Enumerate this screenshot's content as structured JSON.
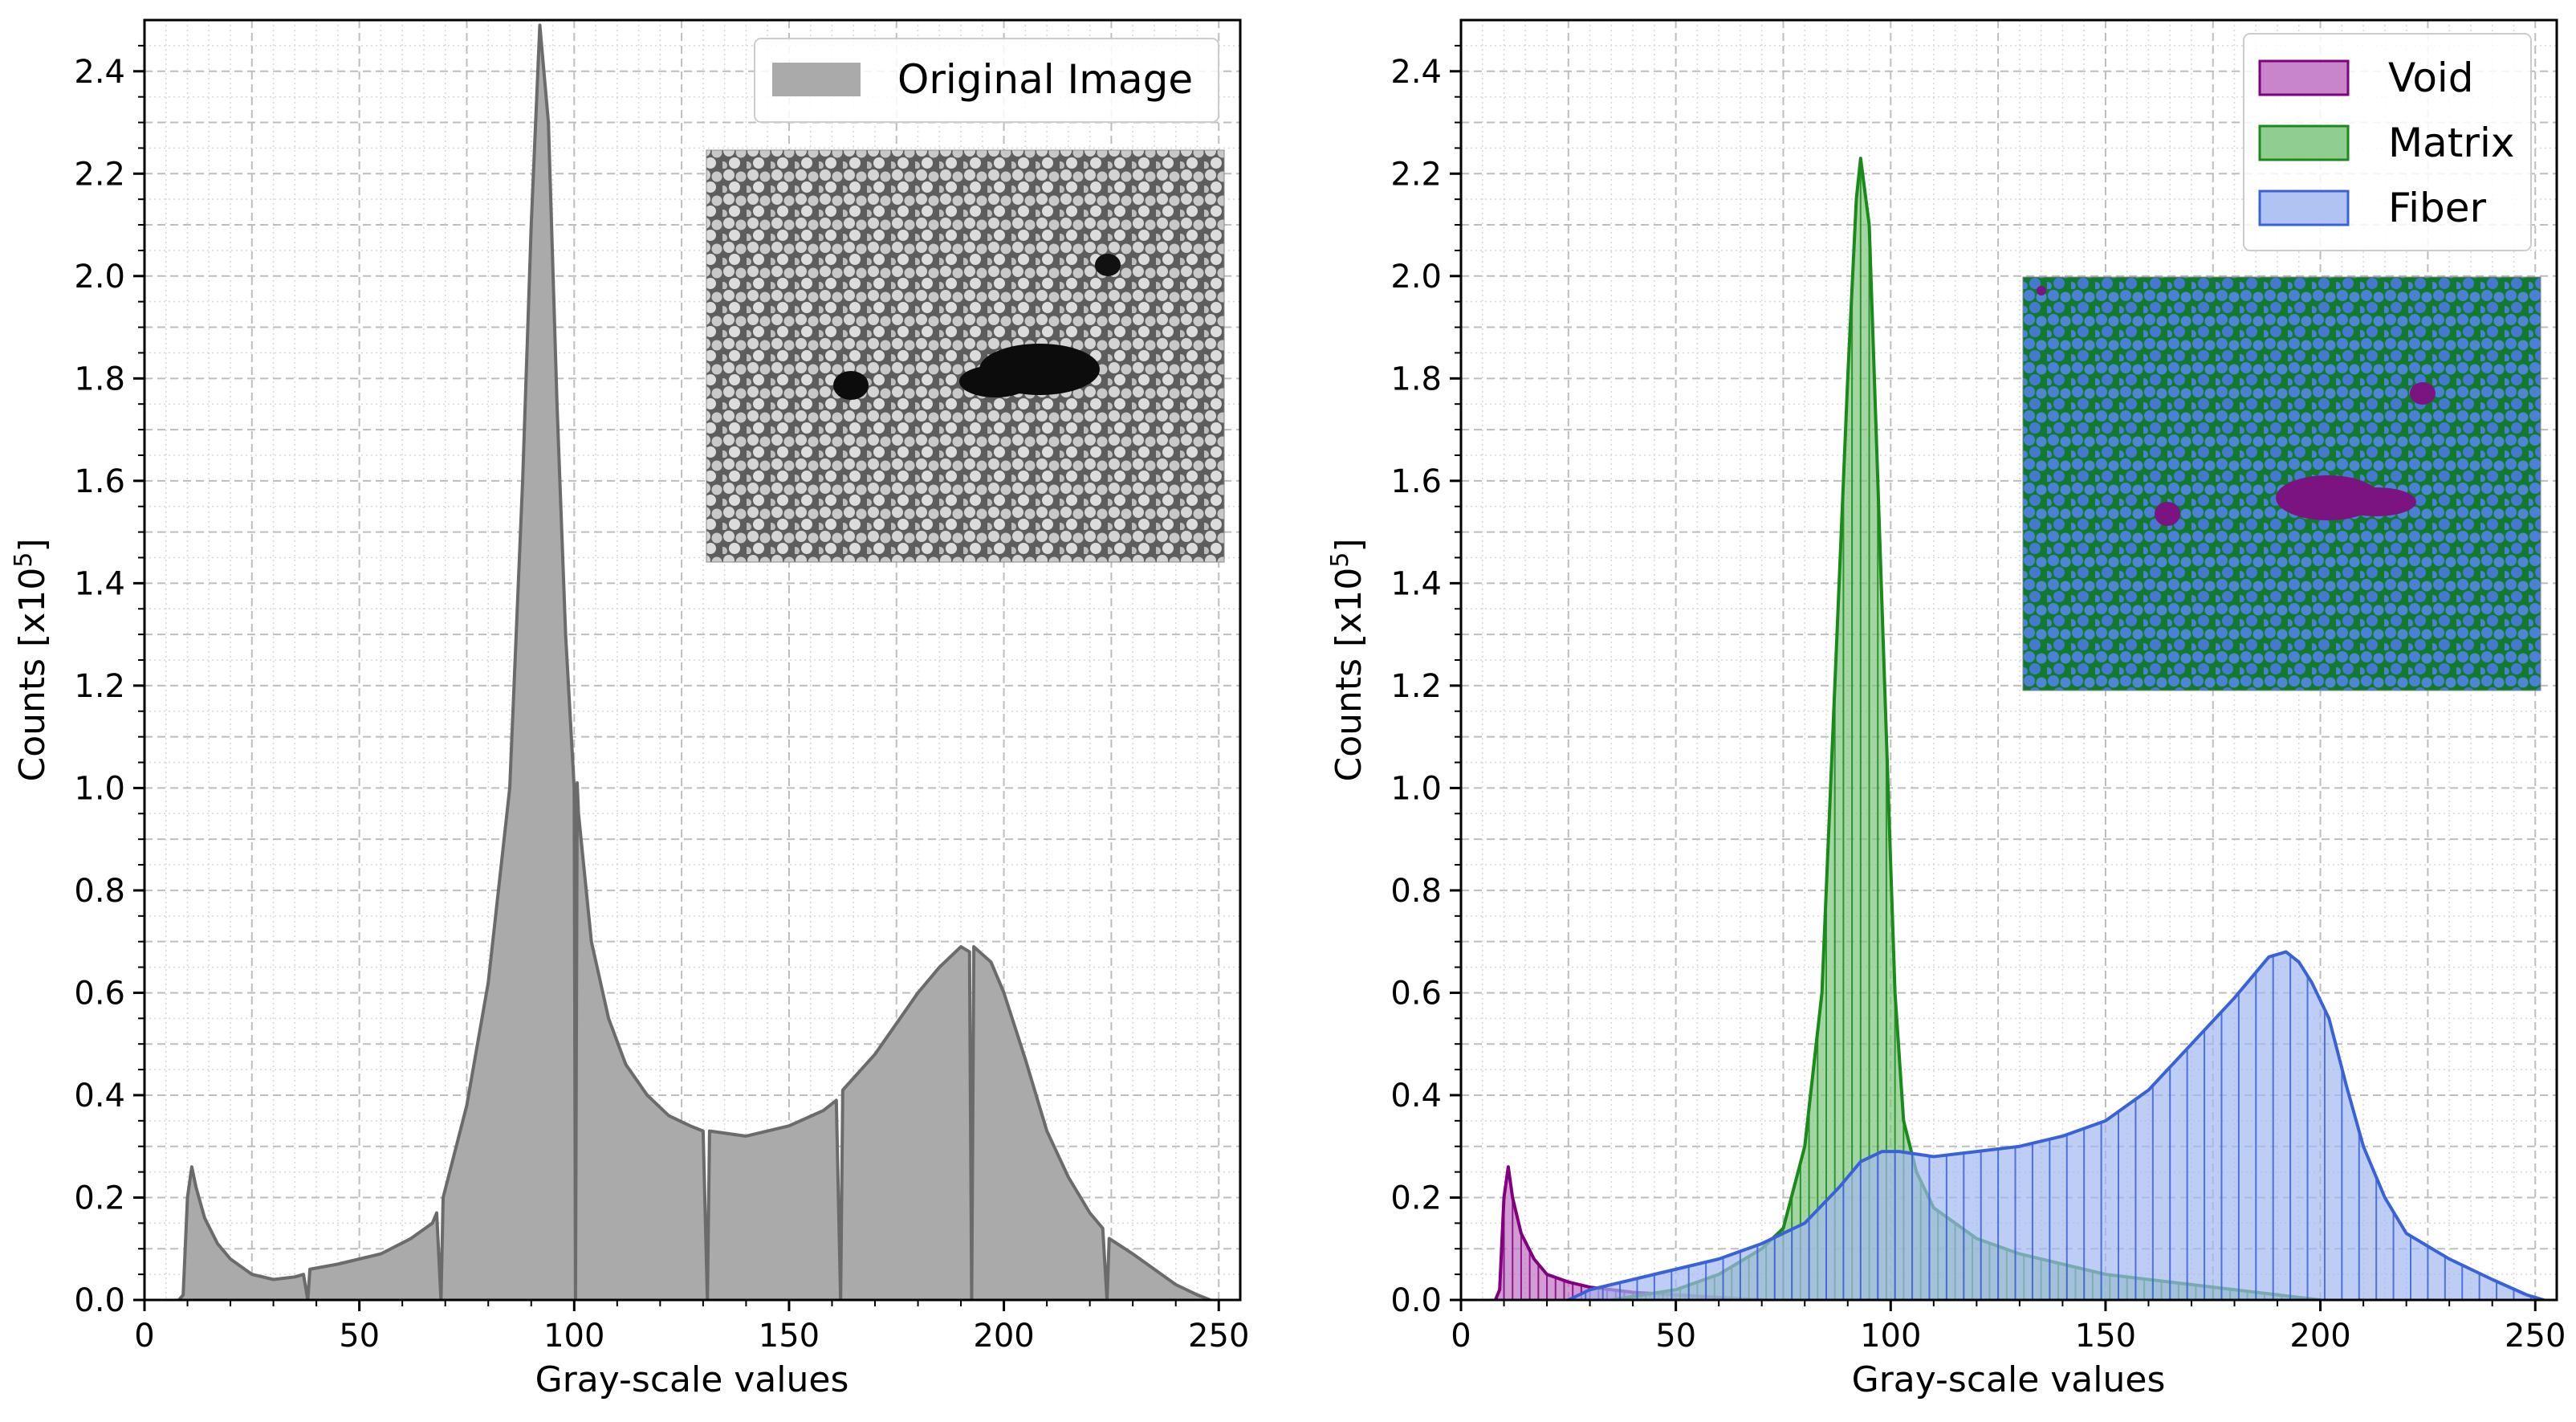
{
  "chart_data": [
    {
      "type": "area",
      "panel": "left",
      "title": "",
      "xlabel": "Gray-scale values",
      "ylabel_main": "Counts [x10",
      "ylabel_exp": "5",
      "ylabel_close": "]",
      "xlim": [
        0,
        255
      ],
      "ylim": [
        0,
        2.5
      ],
      "xticks": [
        0,
        50,
        100,
        150,
        200,
        250
      ],
      "yticks": [
        0.0,
        0.2,
        0.4,
        0.6,
        0.8,
        1.0,
        1.2,
        1.4,
        1.6,
        1.8,
        2.0,
        2.2,
        2.4
      ],
      "grid": true,
      "legend_position": "top-right",
      "inset": "grayscale micrograph of fiber cross-sections with dark voids",
      "series": [
        {
          "name": "Original Image",
          "color": "#aaaaaa",
          "line_color": "#6b6b6b",
          "points": [
            [
              8,
              0.0
            ],
            [
              9,
              0.01
            ],
            [
              10,
              0.2
            ],
            [
              11,
              0.26
            ],
            [
              12,
              0.22
            ],
            [
              14,
              0.16
            ],
            [
              17,
              0.11
            ],
            [
              20,
              0.08
            ],
            [
              25,
              0.05
            ],
            [
              30,
              0.04
            ],
            [
              35,
              0.045
            ],
            [
              37,
              0.05
            ],
            [
              38,
              0.0
            ],
            [
              38.5,
              0.06
            ],
            [
              45,
              0.07
            ],
            [
              55,
              0.09
            ],
            [
              62,
              0.12
            ],
            [
              67,
              0.15
            ],
            [
              68,
              0.17
            ],
            [
              69,
              0.0
            ],
            [
              69.5,
              0.2
            ],
            [
              75,
              0.38
            ],
            [
              80,
              0.62
            ],
            [
              85,
              1.0
            ],
            [
              88,
              1.6
            ],
            [
              90,
              2.1
            ],
            [
              92,
              2.49
            ],
            [
              94,
              2.3
            ],
            [
              96,
              1.75
            ],
            [
              98,
              1.3
            ],
            [
              99,
              1.15
            ],
            [
              100,
              1.0
            ],
            [
              100.3,
              0.0
            ],
            [
              100.7,
              1.01
            ],
            [
              101,
              0.95
            ],
            [
              104,
              0.7
            ],
            [
              108,
              0.55
            ],
            [
              112,
              0.46
            ],
            [
              117,
              0.4
            ],
            [
              122,
              0.36
            ],
            [
              127,
              0.34
            ],
            [
              130,
              0.33
            ],
            [
              131,
              0.0
            ],
            [
              131.5,
              0.33
            ],
            [
              140,
              0.32
            ],
            [
              150,
              0.34
            ],
            [
              158,
              0.37
            ],
            [
              161,
              0.39
            ],
            [
              162,
              0.0
            ],
            [
              162.5,
              0.41
            ],
            [
              170,
              0.48
            ],
            [
              175,
              0.54
            ],
            [
              180,
              0.6
            ],
            [
              185,
              0.65
            ],
            [
              190,
              0.69
            ],
            [
              192,
              0.68
            ],
            [
              192.5,
              0.0
            ],
            [
              193,
              0.69
            ],
            [
              197,
              0.66
            ],
            [
              200,
              0.6
            ],
            [
              205,
              0.47
            ],
            [
              210,
              0.33
            ],
            [
              215,
              0.24
            ],
            [
              220,
              0.17
            ],
            [
              223,
              0.14
            ],
            [
              224,
              0.0
            ],
            [
              224.5,
              0.12
            ],
            [
              230,
              0.09
            ],
            [
              235,
              0.06
            ],
            [
              240,
              0.03
            ],
            [
              245,
              0.01
            ],
            [
              248,
              0.0
            ]
          ]
        }
      ]
    },
    {
      "type": "area",
      "panel": "right",
      "title": "",
      "xlabel": "Gray-scale values",
      "ylabel_main": "Counts [x10",
      "ylabel_exp": "5",
      "ylabel_close": "]",
      "xlim": [
        0,
        255
      ],
      "ylim": [
        0,
        2.5
      ],
      "xticks": [
        0,
        50,
        100,
        150,
        200,
        250
      ],
      "yticks": [
        0.0,
        0.2,
        0.4,
        0.6,
        0.8,
        1.0,
        1.2,
        1.4,
        1.6,
        1.8,
        2.0,
        2.2,
        2.4
      ],
      "grid": true,
      "legend_position": "top-right",
      "inset": "segmented micrograph: fibers blue, matrix green, voids purple",
      "series": [
        {
          "name": "Void",
          "color": "#c070c0",
          "line_color": "#800080",
          "points": [
            [
              8,
              0.0
            ],
            [
              9,
              0.02
            ],
            [
              10,
              0.2
            ],
            [
              11,
              0.26
            ],
            [
              12,
              0.2
            ],
            [
              14,
              0.13
            ],
            [
              17,
              0.08
            ],
            [
              20,
              0.05
            ],
            [
              25,
              0.035
            ],
            [
              30,
              0.025
            ],
            [
              40,
              0.015
            ],
            [
              50,
              0.01
            ],
            [
              60,
              0.005
            ],
            [
              70,
              0.0
            ]
          ]
        },
        {
          "name": "Matrix",
          "color": "#7cc47c",
          "line_color": "#1a8a1a",
          "points": [
            [
              35,
              0.0
            ],
            [
              50,
              0.02
            ],
            [
              60,
              0.05
            ],
            [
              70,
              0.1
            ],
            [
              75,
              0.14
            ],
            [
              80,
              0.3
            ],
            [
              84,
              0.6
            ],
            [
              87,
              1.2
            ],
            [
              90,
              1.8
            ],
            [
              92,
              2.15
            ],
            [
              93,
              2.23
            ],
            [
              95,
              2.1
            ],
            [
              97,
              1.6
            ],
            [
              99,
              1.1
            ],
            [
              101,
              0.6
            ],
            [
              103,
              0.35
            ],
            [
              106,
              0.25
            ],
            [
              110,
              0.18
            ],
            [
              120,
              0.12
            ],
            [
              130,
              0.09
            ],
            [
              140,
              0.07
            ],
            [
              150,
              0.05
            ],
            [
              160,
              0.04
            ],
            [
              170,
              0.03
            ],
            [
              180,
              0.02
            ],
            [
              190,
              0.01
            ],
            [
              200,
              0.0
            ]
          ]
        },
        {
          "name": "Fiber",
          "color": "#a3b8f0",
          "line_color": "#3a62d8",
          "points": [
            [
              25,
              0.0
            ],
            [
              30,
              0.02
            ],
            [
              40,
              0.04
            ],
            [
              50,
              0.06
            ],
            [
              60,
              0.08
            ],
            [
              70,
              0.11
            ],
            [
              80,
              0.15
            ],
            [
              88,
              0.22
            ],
            [
              93,
              0.27
            ],
            [
              98,
              0.29
            ],
            [
              102,
              0.29
            ],
            [
              110,
              0.28
            ],
            [
              120,
              0.29
            ],
            [
              130,
              0.3
            ],
            [
              140,
              0.32
            ],
            [
              150,
              0.35
            ],
            [
              160,
              0.41
            ],
            [
              170,
              0.5
            ],
            [
              180,
              0.59
            ],
            [
              188,
              0.67
            ],
            [
              192,
              0.68
            ],
            [
              195,
              0.66
            ],
            [
              198,
              0.62
            ],
            [
              202,
              0.55
            ],
            [
              206,
              0.42
            ],
            [
              210,
              0.3
            ],
            [
              215,
              0.2
            ],
            [
              220,
              0.13
            ],
            [
              230,
              0.08
            ],
            [
              240,
              0.04
            ],
            [
              248,
              0.01
            ],
            [
              252,
              0.0
            ]
          ]
        }
      ]
    }
  ]
}
